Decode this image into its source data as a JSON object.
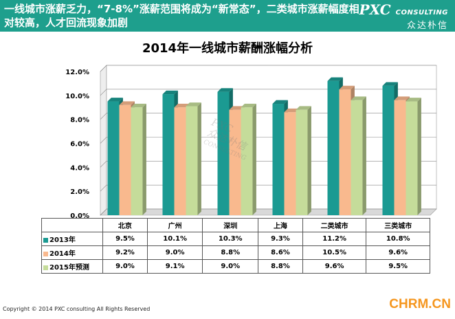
{
  "header": {
    "headline": "一线城市涨薪乏力，“7-8%”涨薪范围将成为“新常态”，二类城市涨薪幅度相对较高，人才回流现象加剧",
    "logo_main": "PXC",
    "logo_sub": "CONSULTING",
    "logo_cn": "众达朴信",
    "background": "#1e9f8d"
  },
  "watermark": {
    "line1": "PXC",
    "line2": "众达朴信",
    "line3": "CONSULTING"
  },
  "footer": {
    "copyright": "Copyright © 2014 PXC consulting All Rights Reserved",
    "source": "CHRM.CN"
  },
  "chart_data": {
    "type": "bar",
    "title": "2014年一线城市薪酬涨幅分析",
    "categories": [
      "北京",
      "广州",
      "深圳",
      "上海",
      "二类城市",
      "三类城市"
    ],
    "series": [
      {
        "name": "2013年",
        "values": [
          9.5,
          10.1,
          10.3,
          9.3,
          11.2,
          10.8
        ],
        "labels": [
          "9.5%",
          "10.1%",
          "10.3%",
          "9.3%",
          "11.2%",
          "10.8%"
        ],
        "color": "#1b9a92"
      },
      {
        "name": "2014年",
        "values": [
          9.2,
          9.0,
          8.8,
          8.6,
          10.5,
          9.6
        ],
        "labels": [
          "9.2%",
          "9.0%",
          "8.8%",
          "8.6%",
          "10.5%",
          "9.6%"
        ],
        "color": "#f9b98e"
      },
      {
        "name": "2015年预测",
        "values": [
          9.0,
          9.1,
          9.0,
          8.8,
          9.6,
          9.5
        ],
        "labels": [
          "9.0%",
          "9.1%",
          "9.0%",
          "8.8%",
          "9.6%",
          "9.5%"
        ],
        "color": "#c5dc9a"
      }
    ],
    "ylim": [
      0,
      12
    ],
    "yticks": [
      "0.0%",
      "2.0%",
      "4.0%",
      "6.0%",
      "8.0%",
      "10.0%",
      "12.0%"
    ],
    "grid": true,
    "legend": "data-table"
  }
}
